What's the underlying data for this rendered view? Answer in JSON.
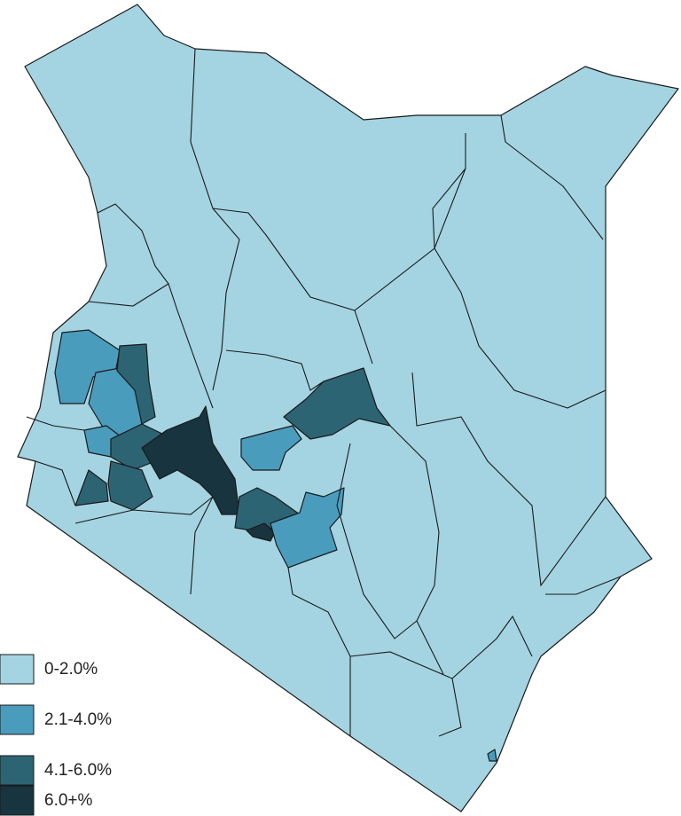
{
  "legend": [
    {
      "label": "0-2.0%",
      "color": "#a4d4e2"
    },
    {
      "label": "2.1-4.0%",
      "color": "#4a9cbd"
    },
    {
      "label": "4.1-6.0%",
      "color": "#2d6474"
    },
    {
      "label": "6.0+%",
      "color": "#17343f"
    }
  ]
}
